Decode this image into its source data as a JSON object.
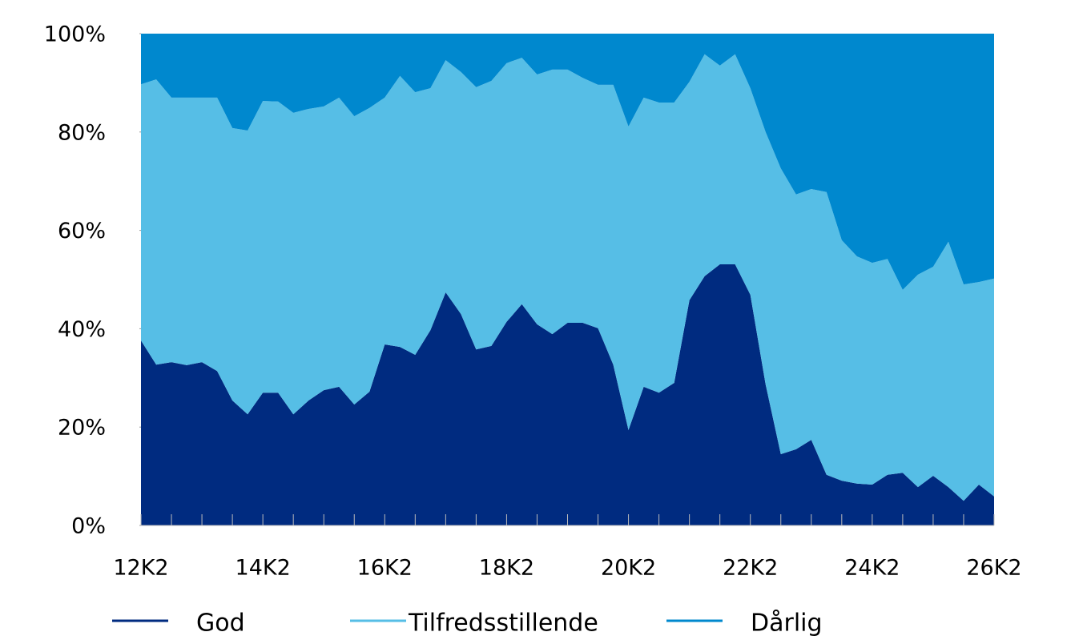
{
  "chart_data": {
    "type": "stacked_area",
    "categories": [
      "12K2",
      null,
      null,
      null,
      null,
      null,
      null,
      null,
      "14K2",
      null,
      null,
      null,
      null,
      null,
      null,
      null,
      "16K2",
      null,
      null,
      null,
      null,
      null,
      null,
      null,
      "18K2",
      null,
      null,
      null,
      null,
      null,
      null,
      null,
      "20K2",
      null,
      null,
      null,
      null,
      null,
      null,
      null,
      "22K2",
      null,
      null,
      null,
      null,
      null,
      null,
      null,
      "24K2",
      null,
      null,
      null,
      null,
      null,
      null,
      null,
      "26K2"
    ],
    "series": [
      {
        "name": "God",
        "color": "#002b80",
        "values": [
          37.6,
          32.7,
          33.2,
          32.6,
          33.2,
          31.4,
          25.4,
          22.6,
          27.0,
          27.0,
          22.6,
          25.4,
          27.5,
          28.2,
          24.6,
          27.2,
          36.8,
          36.3,
          34.7,
          39.7,
          47.4,
          43.0,
          35.8,
          36.5,
          41.4,
          45.0,
          40.9,
          38.9,
          41.2,
          41.2,
          40.1,
          32.7,
          19.4,
          28.2,
          27.0,
          29.0,
          45.8,
          50.7,
          53.1,
          53.1,
          46.9,
          28.7,
          14.5,
          15.5,
          17.4,
          10.3,
          9.1,
          8.5,
          8.3,
          10.3,
          10.7,
          7.8,
          10.1,
          7.8,
          5.0,
          8.3,
          5.9
        ]
      },
      {
        "name": "Tilfredsstillende",
        "color": "#56bee6",
        "values": [
          52.1,
          58.0,
          53.8,
          54.4,
          53.8,
          55.6,
          55.4,
          57.7,
          59.3,
          59.2,
          61.3,
          59.3,
          57.7,
          58.8,
          58.6,
          57.7,
          50.2,
          55.1,
          53.4,
          49.2,
          47.2,
          49.2,
          53.3,
          53.9,
          52.6,
          50.1,
          50.8,
          53.8,
          51.5,
          49.8,
          49.5,
          56.9,
          61.7,
          58.8,
          59.0,
          57.0,
          44.4,
          45.1,
          40.4,
          42.7,
          42.0,
          51.3,
          58.1,
          51.8,
          51.0,
          57.5,
          48.9,
          46.2,
          45.1,
          43.9,
          37.2,
          43.2,
          42.5,
          49.9,
          44.0,
          41.2,
          44.3
        ]
      },
      {
        "name": "Dårlig",
        "color": "#0088ce",
        "values": [
          10.3,
          9.3,
          13.0,
          13.0,
          13.0,
          13.0,
          19.2,
          19.7,
          13.7,
          13.8,
          16.1,
          15.3,
          14.8,
          13.0,
          16.8,
          15.1,
          13.0,
          8.6,
          11.9,
          11.1,
          5.4,
          7.8,
          10.9,
          9.6,
          6.0,
          4.9,
          8.3,
          7.3,
          7.3,
          9.0,
          10.4,
          10.4,
          18.9,
          13.0,
          14.0,
          14.0,
          9.8,
          4.2,
          6.5,
          4.2,
          11.1,
          20.0,
          27.4,
          32.7,
          31.6,
          32.2,
          42.0,
          45.3,
          46.6,
          45.8,
          52.1,
          49.0,
          47.4,
          42.3,
          51.0,
          50.5,
          49.8
        ]
      }
    ],
    "ylim": [
      0,
      100
    ],
    "yticks": [
      {
        "value": 0,
        "label": "0%"
      },
      {
        "value": 20,
        "label": "20%"
      },
      {
        "value": 40,
        "label": "40%"
      },
      {
        "value": 60,
        "label": "60%"
      },
      {
        "value": 80,
        "label": "80%"
      },
      {
        "value": 100,
        "label": "100%"
      }
    ],
    "legend": "bottom"
  }
}
